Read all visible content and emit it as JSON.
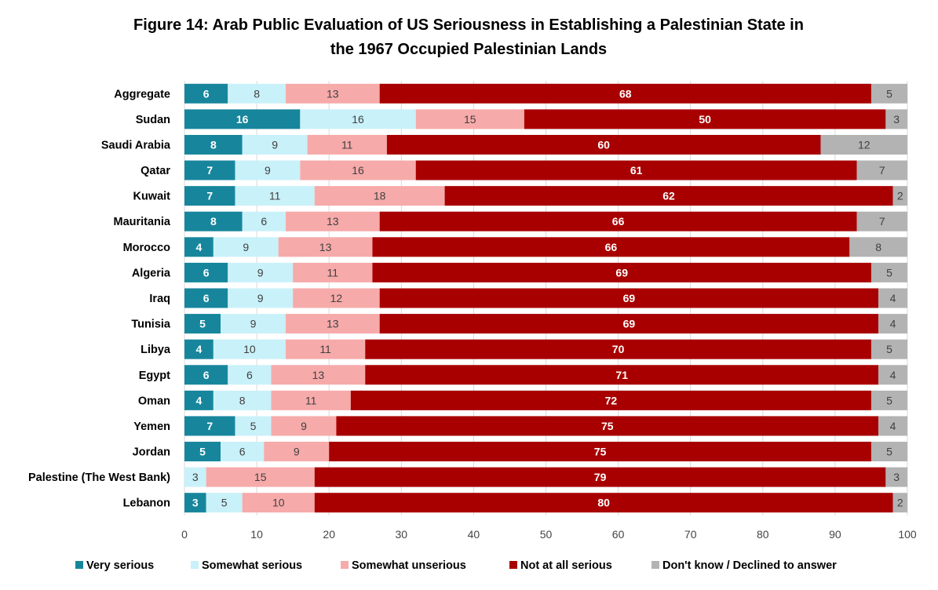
{
  "chart_data": {
    "type": "bar",
    "orientation": "horizontal",
    "stacked": true,
    "title_lines": [
      "Figure 14: Arab Public Evaluation of US Seriousness in Establishing a Palestinian State in",
      "the 1967 Occupied Palestinian Lands"
    ],
    "categories": [
      "Aggregate",
      "Sudan",
      "Saudi Arabia",
      "Qatar",
      "Kuwait",
      "Mauritania",
      "Morocco",
      "Algeria",
      "Iraq",
      "Tunisia",
      "Libya",
      "Egypt",
      "Oman",
      "Yemen",
      "Jordan",
      "Palestine (The West Bank)",
      "Lebanon"
    ],
    "series": [
      {
        "name": "Very serious",
        "color": "#17869c",
        "label_color": "#ffffff",
        "label_bold": true,
        "values": [
          6,
          16,
          8,
          7,
          7,
          8,
          4,
          6,
          6,
          5,
          4,
          6,
          4,
          7,
          5,
          0,
          3
        ]
      },
      {
        "name": "Somewhat serious",
        "color": "#c9f1f9",
        "label_color": "#404040",
        "label_bold": false,
        "values": [
          8,
          16,
          9,
          9,
          11,
          6,
          9,
          9,
          9,
          9,
          10,
          6,
          8,
          5,
          6,
          3,
          5
        ]
      },
      {
        "name": "Somewhat unserious",
        "color": "#f7aaaa",
        "label_color": "#404040",
        "label_bold": false,
        "values": [
          13,
          15,
          11,
          16,
          18,
          13,
          13,
          11,
          12,
          13,
          11,
          13,
          11,
          9,
          9,
          15,
          10
        ]
      },
      {
        "name": "Not at all serious",
        "color": "#a80000",
        "label_color": "#ffffff",
        "label_bold": true,
        "values": [
          68,
          50,
          60,
          61,
          62,
          66,
          66,
          69,
          69,
          69,
          70,
          71,
          72,
          75,
          75,
          79,
          80
        ]
      },
      {
        "name": "Don't know / Declined to answer",
        "color": "#b3b3b3",
        "label_color": "#404040",
        "label_bold": false,
        "values": [
          5,
          3,
          12,
          7,
          2,
          7,
          8,
          5,
          4,
          4,
          5,
          4,
          5,
          4,
          5,
          3,
          2
        ]
      }
    ],
    "xlim": [
      0,
      100
    ],
    "xticks": [
      "0",
      "10",
      "20",
      "30",
      "40",
      "50",
      "60",
      "70",
      "80",
      "90",
      "100"
    ],
    "grid": true,
    "legend": "bottom"
  }
}
